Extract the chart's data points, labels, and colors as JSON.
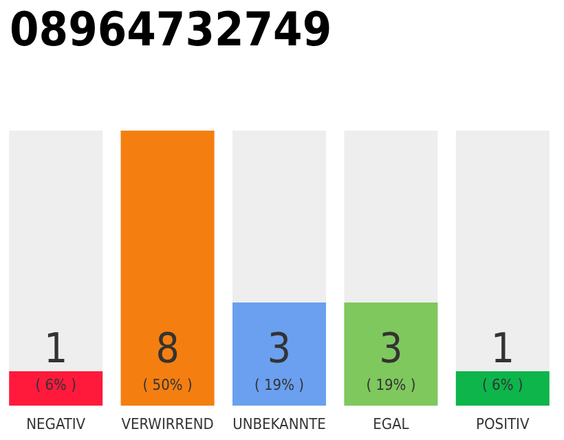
{
  "chart_data": {
    "type": "bar",
    "title": "08964732749",
    "categories": [
      "NEGATIV",
      "VERWIRREND",
      "UNBEKANNTE",
      "EGAL",
      "POSITIV"
    ],
    "values": [
      1,
      8,
      3,
      3,
      1
    ],
    "colors": [
      "#ff1a3c",
      "#f47f10",
      "#6aa0ef",
      "#7ec85e",
      "#0db54a"
    ],
    "value_labels": [
      "1\n( 6% )",
      "8\n( 50% )",
      "3\n( 19% )",
      "3\n( 19% )",
      "1\n( 6% )"
    ]
  }
}
